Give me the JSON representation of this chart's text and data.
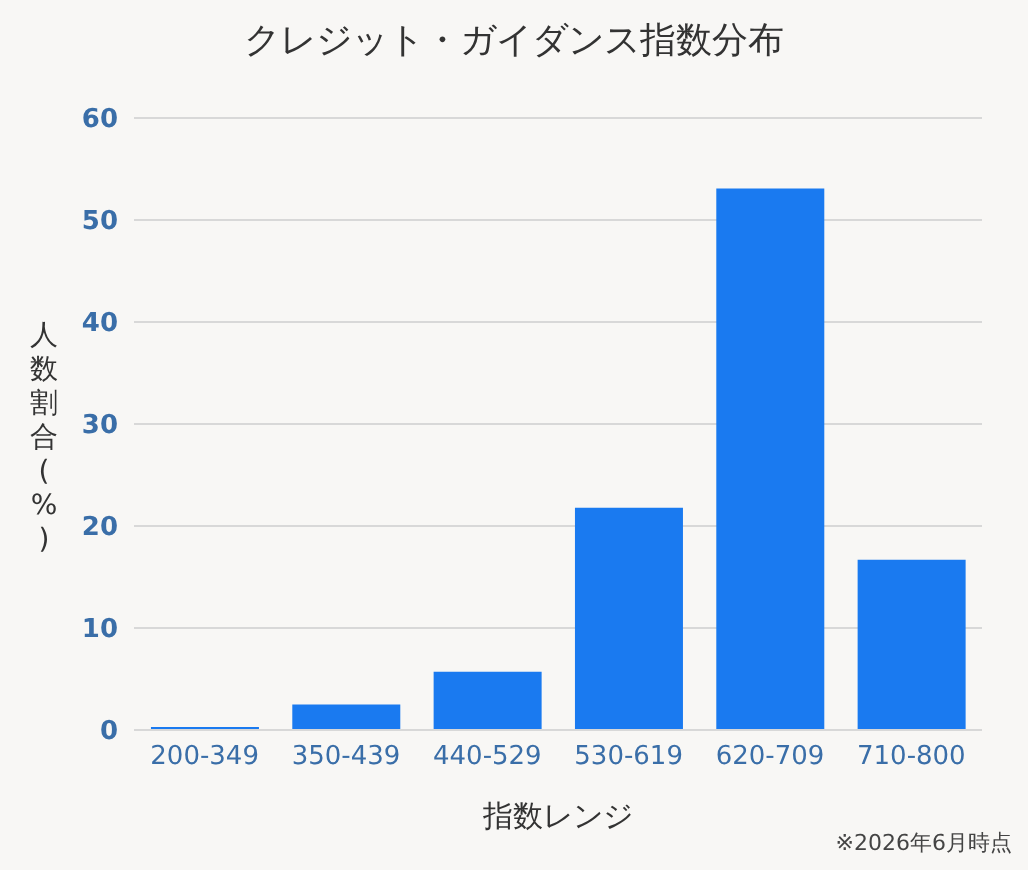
{
  "chart_data": {
    "type": "bar",
    "title": "クレジット・ガイダンス指数分布",
    "xlabel": "指数レンジ",
    "ylabel": "人数割合(%)",
    "categories": [
      "200-349",
      "350-439",
      "440-529",
      "530-619",
      "620-709",
      "710-800"
    ],
    "values": [
      0.3,
      2.5,
      5.7,
      21.8,
      53.1,
      16.7
    ],
    "color": "#1a7af0",
    "ylim": [
      0,
      60
    ],
    "yticks": [
      0,
      10,
      20,
      30,
      40,
      50,
      60
    ],
    "grid": "y",
    "annotations": [
      "※2026年6月時点"
    ]
  }
}
